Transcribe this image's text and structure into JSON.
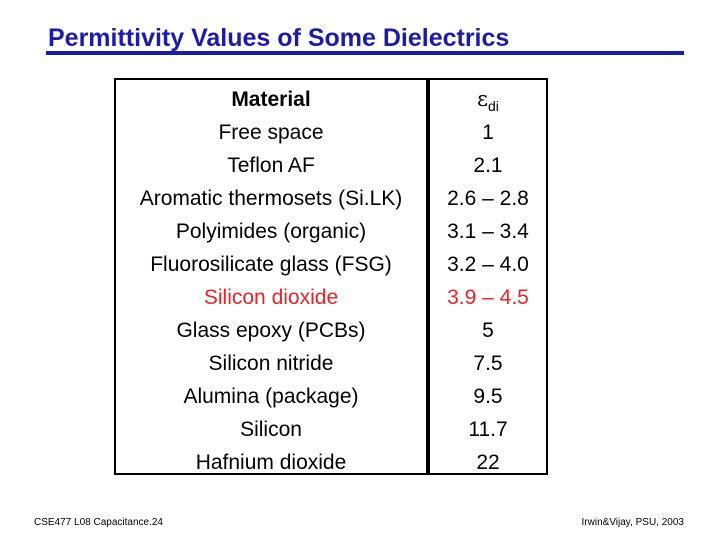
{
  "slide": {
    "title": "Permittivity Values of Some Dielectrics",
    "accent_color": "#1c1ca8",
    "highlight_color": "#e8232a"
  },
  "table": {
    "headers": {
      "material": "Material",
      "symbol": "ε",
      "subscript": "di"
    },
    "rows": [
      {
        "material": "Free space",
        "value": "1",
        "highlight": false
      },
      {
        "material": "Teflon AF",
        "value": "2.1",
        "highlight": false
      },
      {
        "material": "Aromatic thermosets (Si.LK)",
        "value": "2.6 – 2.8",
        "highlight": false
      },
      {
        "material": "Polyimides (organic)",
        "value": "3.1 – 3.4",
        "highlight": false
      },
      {
        "material": "Fluorosilicate glass (FSG)",
        "value": "3.2 – 4.0",
        "highlight": false
      },
      {
        "material": "Silicon dioxide",
        "value": "3.9 – 4.5",
        "highlight": true
      },
      {
        "material": "Glass epoxy (PCBs)",
        "value": "5",
        "highlight": false
      },
      {
        "material": "Silicon nitride",
        "value": "7.5",
        "highlight": false
      },
      {
        "material": "Alumina (package)",
        "value": "9.5",
        "highlight": false
      },
      {
        "material": "Silicon",
        "value": "11.7",
        "highlight": false
      },
      {
        "material": "Hafnium dioxide",
        "value": "22",
        "highlight": false
      }
    ]
  },
  "footer": {
    "left": "CSE477  L08 Capacitance.24",
    "right": "Irwin&Vijay, PSU, 2003"
  }
}
